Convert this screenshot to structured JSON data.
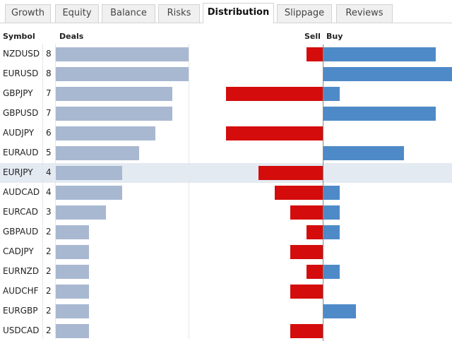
{
  "tabs": [
    "Growth",
    "Equity",
    "Balance",
    "Risks",
    "Distribution",
    "Slippage",
    "Reviews"
  ],
  "active_tab": "Distribution",
  "headers": {
    "symbol": "Symbol",
    "deals": "Deals",
    "sell": "Sell",
    "buy": "Buy"
  },
  "chart_data": {
    "type": "bar",
    "categories": [
      "NZDUSD",
      "EURUSD",
      "GBPJPY",
      "GBPUSD",
      "AUDJPY",
      "EURAUD",
      "EURJPY",
      "AUDCAD",
      "EURCAD",
      "GBPAUD",
      "CADJPY",
      "EURNZD",
      "AUDCHF",
      "EURGBP",
      "USDCAD"
    ],
    "series": [
      {
        "name": "Deals",
        "values": [
          8,
          8,
          7,
          7,
          6,
          5,
          4,
          4,
          3,
          2,
          2,
          2,
          2,
          2,
          2
        ]
      },
      {
        "name": "Sell",
        "values": [
          1,
          0,
          6,
          0,
          6,
          0,
          4,
          3,
          2,
          1,
          2,
          1,
          2,
          0,
          2
        ]
      },
      {
        "name": "Buy",
        "values": [
          7,
          8,
          1,
          7,
          0,
          5,
          0,
          1,
          1,
          1,
          0,
          1,
          0,
          2,
          0
        ]
      }
    ],
    "highlighted": "EURJPY"
  },
  "colors": {
    "deals": "#a9b8d1",
    "sell": "#d40c0c",
    "buy": "#4f8ac8",
    "highlight": "#e4eaf2"
  }
}
